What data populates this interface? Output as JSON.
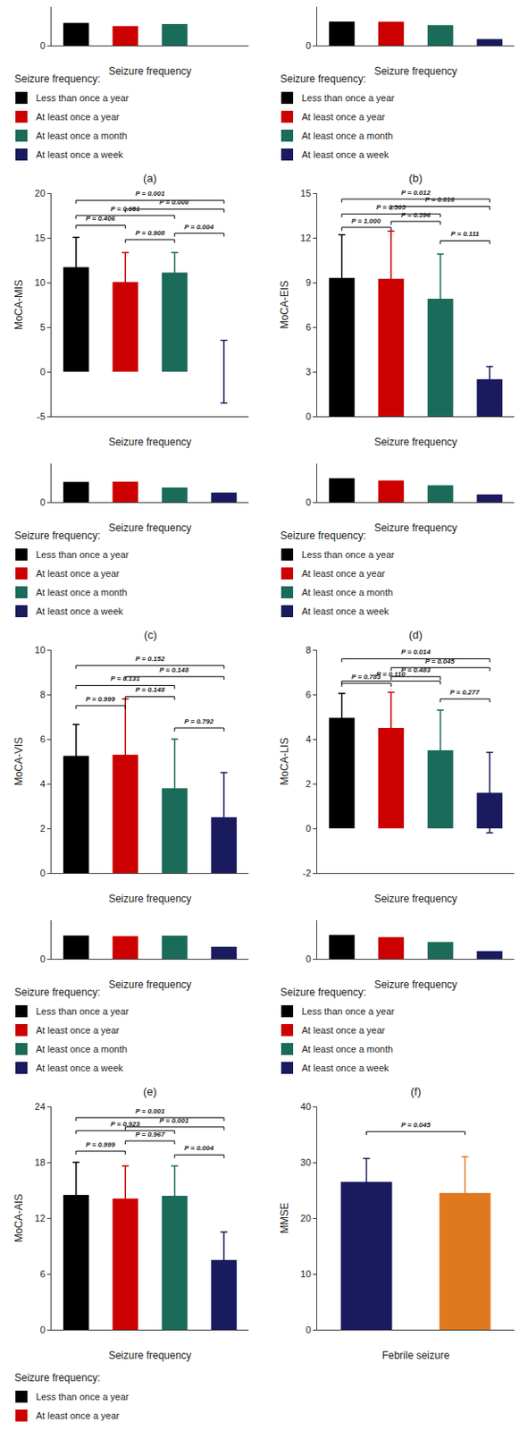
{
  "chart_data": [
    {
      "type": "bar",
      "xlabel": "Seizure frequency",
      "categories": [
        null,
        null,
        null,
        null
      ],
      "values": [
        11.7,
        10.05,
        11.1,
        0.0
      ],
      "colors": [
        "#000000",
        "#CC0000",
        "#1B6B5A",
        "#1A1A5E"
      ],
      "ylim": [
        0,
        20
      ],
      "yticks": [
        0
      ],
      "grid": false,
      "tick_labels": "y"
    },
    {
      "type": "bar",
      "xlabel": "Seizure frequency",
      "categories": [
        null,
        null,
        null,
        null
      ],
      "values": [
        9.3,
        9.25,
        7.9,
        2.5
      ],
      "colors": [
        "#000000",
        "#CC0000",
        "#1B6B5A",
        "#1A1A5E"
      ],
      "ylim": [
        0,
        15
      ],
      "yticks": [
        0
      ],
      "grid": false,
      "tick_labels": "y"
    },
    {
      "type": "legend",
      "title": "Seizure frequency:",
      "labels": [
        "Less than once a year",
        "At least once a year",
        "At least once a month",
        "At least once a week"
      ],
      "colors": [
        "#000000",
        "#CC0000",
        "#1B6B5A",
        "#1A1A5E"
      ]
    },
    {
      "type": "legend",
      "title": "Seizure frequency:",
      "labels": [
        "Less than once a year",
        "At least once a year",
        "At least once a month",
        "At least once a week"
      ],
      "colors": [
        "#000000",
        "#CC0000",
        "#1B6B5A",
        "#1A1A5E"
      ]
    },
    {
      "type": "bar",
      "title": "(a)",
      "ylabel": "MoCA-MIS",
      "xlabel": "Seizure frequency",
      "categories": [
        null,
        null,
        null,
        null
      ],
      "values": [
        11.7,
        10.05,
        11.1,
        0.0
      ],
      "errors": [
        3.35,
        3.3,
        2.25,
        3.5
      ],
      "colors": [
        "#000000",
        "#CC0000",
        "#1B6B5A",
        "#1A1A5E"
      ],
      "ylim": [
        -5,
        20
      ],
      "yticks": [
        -5,
        0,
        5,
        10,
        15,
        20
      ],
      "grid": false,
      "tick_labels": "y",
      "significance": [
        {
          "x1": 0,
          "x2": 1,
          "y": 16.4,
          "label": "P = 0.406"
        },
        {
          "x1": 1,
          "x2": 2,
          "y": 14.8,
          "label": "P = 0.908"
        },
        {
          "x1": 0,
          "x2": 2,
          "y": 17.5,
          "label": "P = 0.951"
        },
        {
          "x1": 0,
          "x2": 3,
          "y": 19.2,
          "label": "P = 0.001"
        },
        {
          "x1": 1,
          "x2": 3,
          "y": 18.2,
          "label": "P = 0.008"
        },
        {
          "x1": 2,
          "x2": 3,
          "y": 15.5,
          "label": "P = 0.004"
        }
      ]
    },
    {
      "type": "bar",
      "title": "(b)",
      "ylabel": "MoCA-EIS",
      "xlabel": "Seizure frequency",
      "categories": [
        null,
        null,
        null,
        null
      ],
      "values": [
        9.3,
        9.25,
        7.9,
        2.5
      ],
      "errors": [
        2.9,
        3.2,
        3.0,
        0.85
      ],
      "colors": [
        "#000000",
        "#CC0000",
        "#1B6B5A",
        "#1A1A5E"
      ],
      "ylim": [
        0,
        15
      ],
      "yticks": [
        0,
        3,
        6,
        9,
        12,
        15
      ],
      "grid": false,
      "tick_labels": "y",
      "significance": [
        {
          "x1": 0,
          "x2": 1,
          "y": 12.7,
          "label": "P = 1.000"
        },
        {
          "x1": 1,
          "x2": 2,
          "y": 13.1,
          "label": "P = 0.596"
        },
        {
          "x1": 0,
          "x2": 2,
          "y": 13.6,
          "label": "P = 0.505"
        },
        {
          "x1": 0,
          "x2": 3,
          "y": 14.6,
          "label": "P = 0.012"
        },
        {
          "x1": 1,
          "x2": 3,
          "y": 14.1,
          "label": "P = 0.016"
        },
        {
          "x1": 2,
          "x2": 3,
          "y": 11.8,
          "label": "P = 0.111"
        }
      ]
    },
    {
      "type": "bar",
      "xlabel": "Seizure frequency",
      "categories": [
        null,
        null,
        null,
        null
      ],
      "values": [
        5.25,
        5.3,
        3.8,
        2.5
      ],
      "colors": [
        "#000000",
        "#CC0000",
        "#1B6B5A",
        "#1A1A5E"
      ],
      "ylim": [
        0,
        10
      ],
      "yticks": [
        0
      ],
      "grid": false,
      "tick_labels": "y"
    },
    {
      "type": "bar",
      "xlabel": "Seizure frequency",
      "categories": [
        null,
        null,
        null,
        null
      ],
      "values": [
        4.95,
        4.5,
        3.5,
        1.6
      ],
      "colors": [
        "#000000",
        "#CC0000",
        "#1B6B5A",
        "#1A1A5E"
      ],
      "ylim": [
        0,
        8
      ],
      "yticks": [
        0
      ],
      "grid": false,
      "tick_labels": "y"
    },
    {
      "type": "legend",
      "title": "Seizure frequency:",
      "labels": [
        "Less than once a year",
        "At least once a year",
        "At least once a month",
        "At least once a week"
      ],
      "colors": [
        "#000000",
        "#CC0000",
        "#1B6B5A",
        "#1A1A5E"
      ]
    },
    {
      "type": "legend",
      "title": "Seizure frequency:",
      "labels": [
        "Less than once a year",
        "At least once a year",
        "At least once a month",
        "At least once a week"
      ],
      "colors": [
        "#000000",
        "#CC0000",
        "#1B6B5A",
        "#1A1A5E"
      ]
    },
    {
      "type": "bar",
      "title": "(c)",
      "ylabel": "MoCA-VIS",
      "xlabel": "Seizure frequency",
      "categories": [
        null,
        null,
        null,
        null
      ],
      "values": [
        5.25,
        5.3,
        3.8,
        2.5
      ],
      "errors": [
        1.4,
        2.5,
        2.2,
        2.0
      ],
      "colors": [
        "#000000",
        "#CC0000",
        "#1B6B5A",
        "#1A1A5E"
      ],
      "ylim": [
        0,
        10
      ],
      "yticks": [
        0,
        2,
        4,
        6,
        8,
        10
      ],
      "grid": false,
      "tick_labels": "y",
      "significance": [
        {
          "x1": 0,
          "x2": 1,
          "y": 7.5,
          "label": "P = 0.999"
        },
        {
          "x1": 1,
          "x2": 2,
          "y": 7.9,
          "label": "P = 0.148"
        },
        {
          "x1": 0,
          "x2": 2,
          "y": 8.4,
          "label": "P = 0.131"
        },
        {
          "x1": 0,
          "x2": 3,
          "y": 9.3,
          "label": "P = 0.152"
        },
        {
          "x1": 1,
          "x2": 3,
          "y": 8.8,
          "label": "P = 0.148"
        },
        {
          "x1": 2,
          "x2": 3,
          "y": 6.5,
          "label": "P = 0.792"
        }
      ]
    },
    {
      "type": "bar",
      "title": "(d)",
      "ylabel": "MoCA-LIS",
      "xlabel": "Seizure frequency",
      "categories": [
        null,
        null,
        null,
        null
      ],
      "values": [
        4.95,
        4.5,
        3.5,
        1.6
      ],
      "errors": [
        1.1,
        1.6,
        1.8,
        1.8
      ],
      "colors": [
        "#000000",
        "#CC0000",
        "#1B6B5A",
        "#1A1A5E"
      ],
      "ylim": [
        -2,
        8
      ],
      "yticks": [
        -2,
        0,
        2,
        4,
        6,
        8
      ],
      "grid": false,
      "tick_labels": "y",
      "significance": [
        {
          "x1": 0,
          "x2": 1,
          "y": 6.5,
          "label": "P = 0.783"
        },
        {
          "x1": 1,
          "x2": 2,
          "y": 6.8,
          "label": "P = 0.483"
        },
        {
          "x1": 0,
          "x2": 2,
          "y": 6.6,
          "label": "P = 0.110"
        },
        {
          "x1": 0,
          "x2": 3,
          "y": 7.6,
          "label": "P = 0.014"
        },
        {
          "x1": 1,
          "x2": 3,
          "y": 7.2,
          "label": "P = 0.045"
        },
        {
          "x1": 2,
          "x2": 3,
          "y": 5.8,
          "label": "P = 0.277"
        }
      ]
    },
    {
      "type": "bar",
      "xlabel": "Seizure frequency",
      "categories": [
        null,
        null,
        null,
        null
      ],
      "values": [
        14.5,
        14.1,
        14.4,
        7.5
      ],
      "colors": [
        "#000000",
        "#CC0000",
        "#1B6B5A",
        "#1A1A5E"
      ],
      "ylim": [
        0,
        24
      ],
      "yticks": [
        0
      ],
      "grid": false,
      "tick_labels": "y"
    },
    {
      "type": "bar",
      "xlabel": "Seizure frequency",
      "categories": [
        null,
        null,
        null,
        null
      ],
      "values": [
        4.95,
        4.5,
        3.5,
        1.6
      ],
      "colors": [
        "#000000",
        "#CC0000",
        "#1B6B5A",
        "#1A1A5E"
      ],
      "ylim": [
        0,
        8
      ],
      "yticks": [
        0
      ],
      "grid": false,
      "tick_labels": "y"
    },
    {
      "type": "legend",
      "title": "Seizure frequency:",
      "labels": [
        "Less than once a year",
        "At least once a year",
        "At least once a month",
        "At least once a week"
      ],
      "colors": [
        "#000000",
        "#CC0000",
        "#1B6B5A",
        "#1A1A5E"
      ]
    },
    {
      "type": "legend",
      "title": "Seizure frequency:",
      "labels": [
        "Less than once a year",
        "At least once a year",
        "At least once a month",
        "At least once a week"
      ],
      "colors": [
        "#000000",
        "#CC0000",
        "#1B6B5A",
        "#1A1A5E"
      ]
    },
    {
      "type": "bar",
      "title": "(e)",
      "ylabel": "MoCA-AIS",
      "xlabel": "Seizure frequency",
      "categories": [
        null,
        null,
        null,
        null
      ],
      "values": [
        14.5,
        14.1,
        14.4,
        7.5
      ],
      "errors": [
        3.5,
        3.5,
        3.2,
        3.0
      ],
      "colors": [
        "#000000",
        "#CC0000",
        "#1B6B5A",
        "#1A1A5E"
      ],
      "ylim": [
        0,
        24
      ],
      "yticks": [
        0,
        6,
        12,
        18,
        24
      ],
      "grid": false,
      "tick_labels": "y",
      "significance": [
        {
          "x1": 0,
          "x2": 1,
          "y": 19.2,
          "label": "P = 0.999"
        },
        {
          "x1": 1,
          "x2": 2,
          "y": 20.3,
          "label": "P = 0.967"
        },
        {
          "x1": 0,
          "x2": 2,
          "y": 21.4,
          "label": "P = 0.923"
        },
        {
          "x1": 0,
          "x2": 3,
          "y": 22.8,
          "label": "P = 0.001"
        },
        {
          "x1": 1,
          "x2": 3,
          "y": 21.8,
          "label": "P = 0.001"
        },
        {
          "x1": 2,
          "x2": 3,
          "y": 18.8,
          "label": "P = 0.004"
        }
      ]
    },
    {
      "type": "bar",
      "title": "(f)",
      "ylabel": "MMSE",
      "xlabel": "Febrile seizure",
      "categories": [
        null,
        null
      ],
      "values": [
        26.5,
        24.5
      ],
      "errors": [
        4.2,
        6.5
      ],
      "colors": [
        "#1A1A5E",
        "#E07820"
      ],
      "ylim": [
        0,
        40
      ],
      "yticks": [
        0,
        10,
        20,
        30,
        40
      ],
      "grid": false,
      "tick_labels": "y",
      "significance": [
        {
          "x1": 0,
          "x2": 1,
          "y": 35.5,
          "label": "P = 0.045"
        }
      ]
    },
    {
      "type": "legend",
      "title": "Seizure frequency:",
      "labels": [
        "Less than once a year",
        "At least once a year"
      ],
      "colors": [
        "#000000",
        "#CC0000"
      ]
    }
  ]
}
